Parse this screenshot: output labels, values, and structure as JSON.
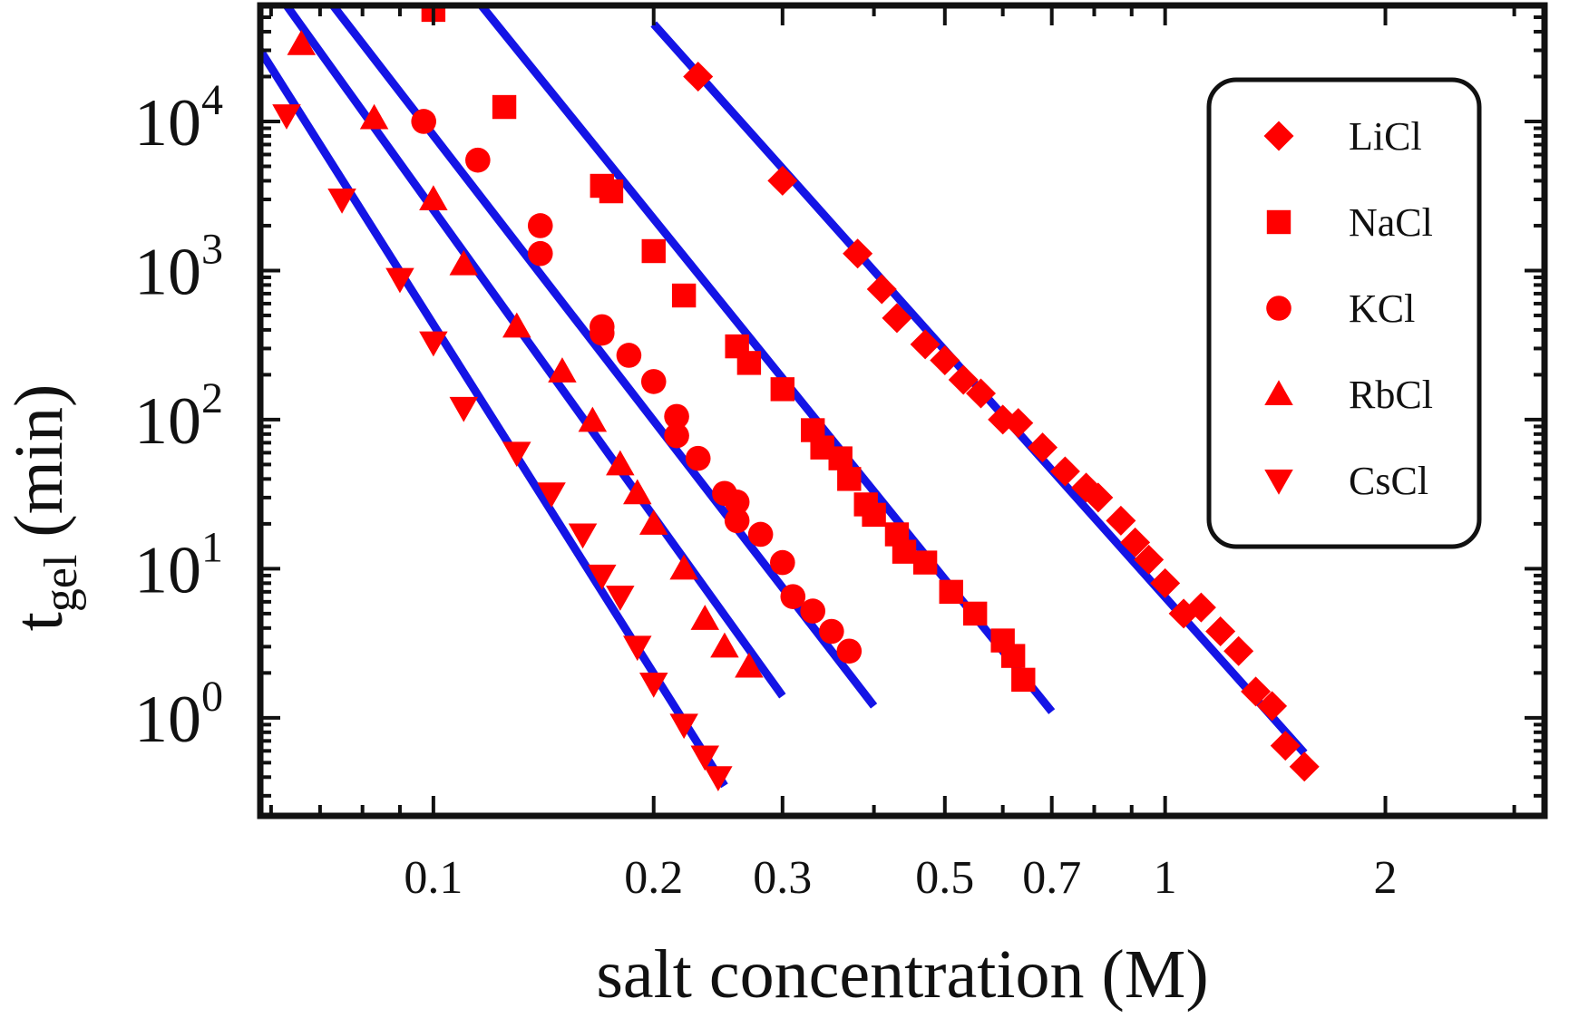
{
  "chart_data": {
    "type": "scatter",
    "xlabel": "salt concentration (M)",
    "ylabel": {
      "main": "t",
      "sub": "gel",
      "rest": " (min)"
    },
    "x_scale": "log",
    "y_scale": "log",
    "xlim": [
      0.058,
      3.3
    ],
    "ylim": [
      0.22,
      60000
    ],
    "x_ticks": [
      {
        "value": 0.1,
        "label": "0.1"
      },
      {
        "value": 0.2,
        "label": "0.2"
      },
      {
        "value": 0.3,
        "label": "0.3"
      },
      {
        "value": 0.5,
        "label": "0.5"
      },
      {
        "value": 0.7,
        "label": "0.7"
      },
      {
        "value": 1,
        "label": "1"
      },
      {
        "value": 2,
        "label": "2"
      }
    ],
    "y_ticks": [
      {
        "value": 1,
        "base": "10",
        "exp": "0"
      },
      {
        "value": 10,
        "base": "10",
        "exp": "1"
      },
      {
        "value": 100,
        "base": "10",
        "exp": "2"
      },
      {
        "value": 1000,
        "base": "10",
        "exp": "3"
      },
      {
        "value": 10000,
        "base": "10",
        "exp": "4"
      }
    ],
    "legend_position": "top-right",
    "marker_color": "#ff0000",
    "fit_color": "#1414e6",
    "series": [
      {
        "name": "LiCl",
        "marker": "diamond",
        "fit": {
          "x": [
            0.2,
            1.55
          ],
          "y": [
            45000,
            0.58
          ]
        },
        "points": [
          [
            0.23,
            20000
          ],
          [
            0.3,
            4000
          ],
          [
            0.38,
            1300
          ],
          [
            0.41,
            750
          ],
          [
            0.43,
            480
          ],
          [
            0.47,
            320
          ],
          [
            0.5,
            250
          ],
          [
            0.53,
            185
          ],
          [
            0.56,
            150
          ],
          [
            0.6,
            100
          ],
          [
            0.63,
            95
          ],
          [
            0.68,
            65
          ],
          [
            0.73,
            45
          ],
          [
            0.78,
            35
          ],
          [
            0.81,
            30
          ],
          [
            0.87,
            21
          ],
          [
            0.91,
            15
          ],
          [
            0.95,
            11.5
          ],
          [
            1.0,
            8
          ],
          [
            1.06,
            5
          ],
          [
            1.12,
            5.5
          ],
          [
            1.19,
            3.8
          ],
          [
            1.26,
            2.8
          ],
          [
            1.33,
            1.5
          ],
          [
            1.4,
            1.2
          ],
          [
            1.46,
            0.65
          ],
          [
            1.55,
            0.47
          ]
        ]
      },
      {
        "name": "NaCl",
        "marker": "square",
        "fit": {
          "x": [
            0.1,
            0.7
          ],
          "y": [
            150000,
            1.1
          ]
        },
        "points": [
          [
            0.1,
            56000
          ],
          [
            0.125,
            12500
          ],
          [
            0.17,
            3700
          ],
          [
            0.175,
            3400
          ],
          [
            0.2,
            1350
          ],
          [
            0.22,
            680
          ],
          [
            0.26,
            310
          ],
          [
            0.27,
            240
          ],
          [
            0.3,
            160
          ],
          [
            0.33,
            85
          ],
          [
            0.34,
            65
          ],
          [
            0.36,
            55
          ],
          [
            0.37,
            40
          ],
          [
            0.39,
            27
          ],
          [
            0.4,
            23
          ],
          [
            0.43,
            17
          ],
          [
            0.44,
            13
          ],
          [
            0.47,
            11
          ],
          [
            0.51,
            7
          ],
          [
            0.55,
            5
          ],
          [
            0.6,
            3.3
          ],
          [
            0.62,
            2.6
          ],
          [
            0.64,
            1.8
          ]
        ]
      },
      {
        "name": "KCl",
        "marker": "circle",
        "fit": {
          "x": [
            0.072,
            0.4
          ],
          "y": [
            65000,
            1.2
          ]
        },
        "points": [
          [
            0.097,
            10000
          ],
          [
            0.115,
            5500
          ],
          [
            0.14,
            2000
          ],
          [
            0.14,
            1300
          ],
          [
            0.17,
            420
          ],
          [
            0.17,
            380
          ],
          [
            0.185,
            270
          ],
          [
            0.2,
            180
          ],
          [
            0.215,
            105
          ],
          [
            0.215,
            78
          ],
          [
            0.23,
            55
          ],
          [
            0.25,
            32
          ],
          [
            0.26,
            28
          ],
          [
            0.26,
            21
          ],
          [
            0.28,
            17
          ],
          [
            0.3,
            11
          ],
          [
            0.31,
            6.5
          ],
          [
            0.33,
            5.2
          ],
          [
            0.35,
            3.8
          ],
          [
            0.37,
            2.8
          ]
        ]
      },
      {
        "name": "RbCl",
        "marker": "triangle-up",
        "fit": {
          "x": [
            0.063,
            0.3
          ],
          "y": [
            60000,
            1.4
          ]
        },
        "points": [
          [
            0.066,
            33000
          ],
          [
            0.083,
            10500
          ],
          [
            0.1,
            3000
          ],
          [
            0.11,
            1100
          ],
          [
            0.13,
            420
          ],
          [
            0.15,
            210
          ],
          [
            0.165,
            98
          ],
          [
            0.18,
            50
          ],
          [
            0.19,
            32
          ],
          [
            0.2,
            20
          ],
          [
            0.22,
            10
          ],
          [
            0.235,
            4.6
          ],
          [
            0.25,
            3
          ],
          [
            0.27,
            2.2
          ]
        ]
      },
      {
        "name": "CsCl",
        "marker": "triangle-down",
        "fit": {
          "x": [
            0.058,
            0.25
          ],
          "y": [
            30000,
            0.35
          ]
        },
        "points": [
          [
            0.063,
            11000
          ],
          [
            0.075,
            3000
          ],
          [
            0.09,
            880
          ],
          [
            0.1,
            330
          ],
          [
            0.11,
            120
          ],
          [
            0.13,
            60
          ],
          [
            0.145,
            32
          ],
          [
            0.16,
            17
          ],
          [
            0.17,
            9
          ],
          [
            0.18,
            6.5
          ],
          [
            0.19,
            3
          ],
          [
            0.2,
            1.7
          ],
          [
            0.22,
            0.9
          ],
          [
            0.235,
            0.55
          ],
          [
            0.245,
            0.4
          ]
        ]
      }
    ]
  }
}
